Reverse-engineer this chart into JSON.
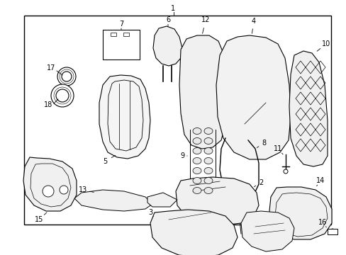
{
  "bg_color": "#ffffff",
  "line_color": "#000000",
  "fig_width": 4.89,
  "fig_height": 3.6,
  "dpi": 100,
  "border": [
    0.07,
    0.06,
    0.955,
    0.88
  ]
}
